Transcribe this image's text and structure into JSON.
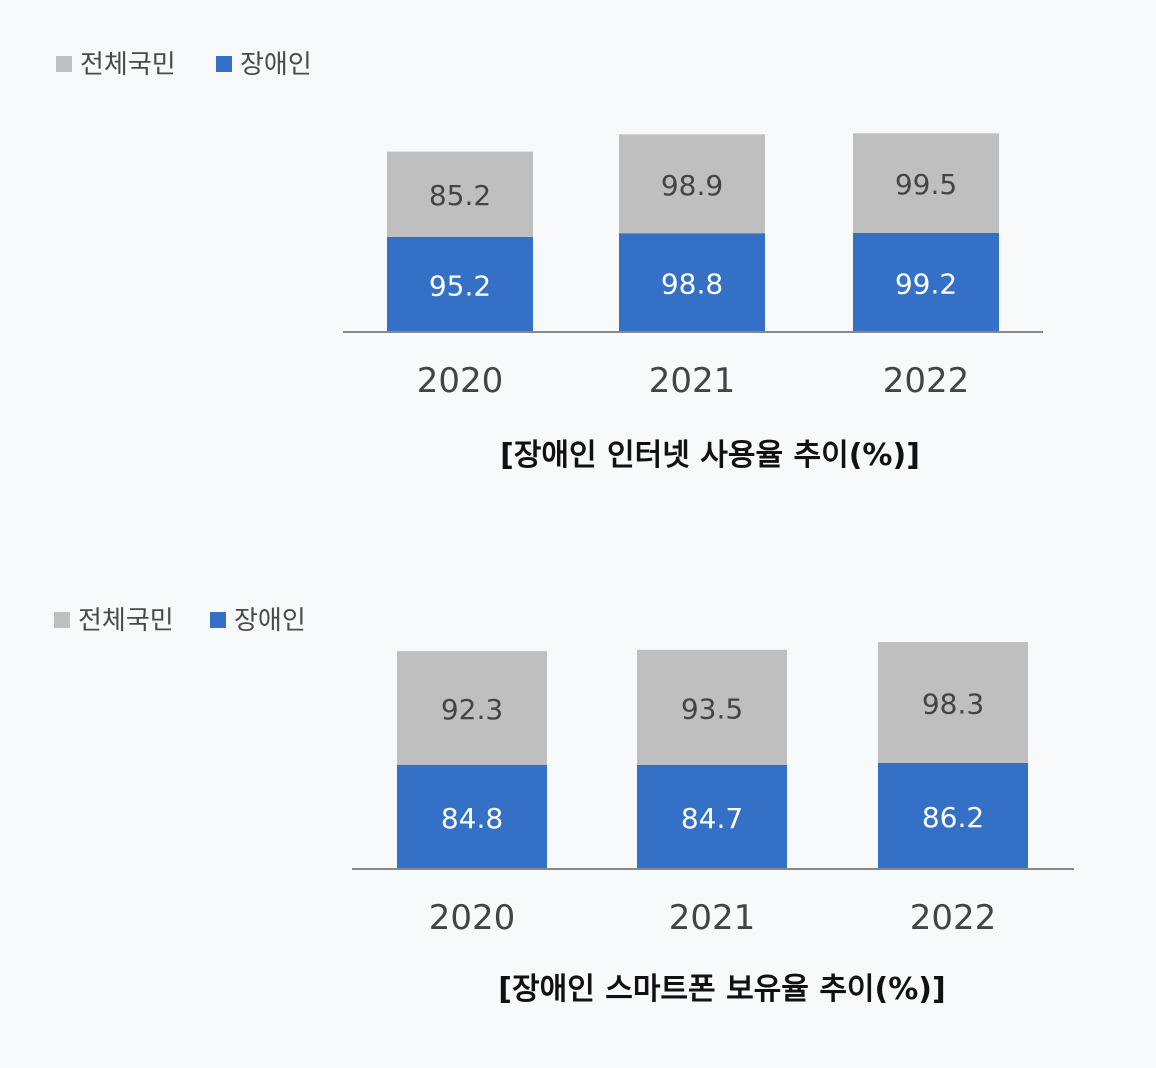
{
  "charts": [
    {
      "chart_data": {
        "type": "bar",
        "stacked": true,
        "title": "[장애인 인터넷 사용율 추이(%)]",
        "categories": [
          "2020",
          "2021",
          "2022"
        ],
        "series": [
          {
            "name": "장애인",
            "color": "#3370c6",
            "values": [
              95.2,
              98.8,
              99.2
            ]
          },
          {
            "name": "전체국민",
            "color": "#bfbfbf",
            "values": [
              85.2,
              98.9,
              99.5
            ]
          }
        ],
        "xlabel": "",
        "ylabel": "",
        "grid": false,
        "legend": "top-left"
      }
    },
    {
      "chart_data": {
        "type": "bar",
        "stacked": true,
        "title": "[장애인 스마트폰 보유율 추이(%)]",
        "categories": [
          "2020",
          "2021",
          "2022"
        ],
        "series": [
          {
            "name": "장애인",
            "color": "#3370c6",
            "values": [
              84.8,
              84.7,
              86.2
            ]
          },
          {
            "name": "전체국민",
            "color": "#bfbfbf",
            "values": [
              92.3,
              93.5,
              98.3
            ]
          }
        ],
        "xlabel": "",
        "ylabel": "",
        "grid": false,
        "legend": "top-left"
      }
    }
  ]
}
